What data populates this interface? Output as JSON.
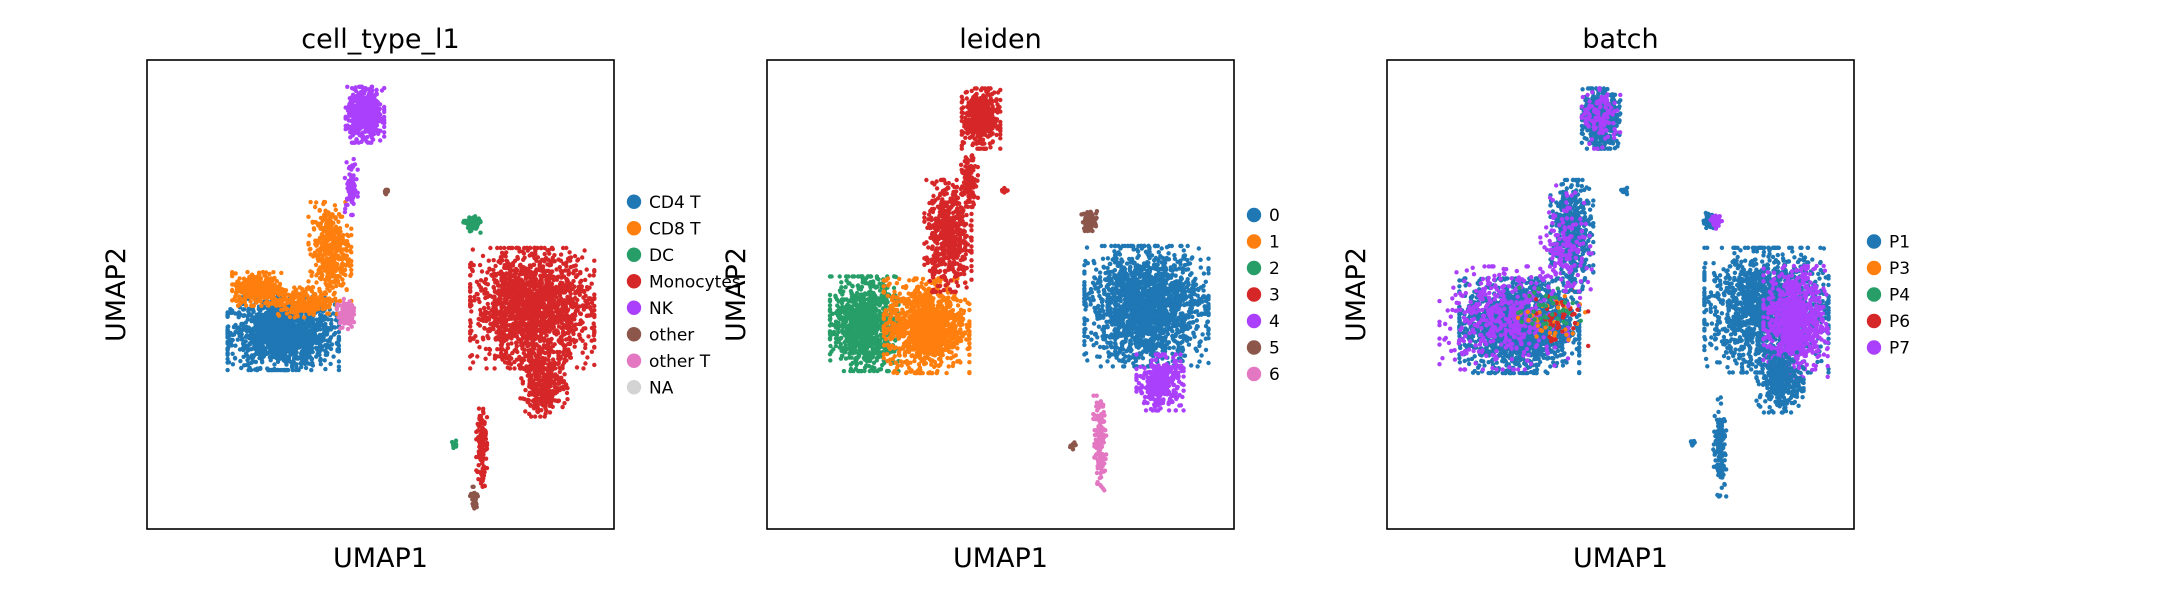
{
  "chart_data": [
    {
      "type": "scatter",
      "title": "cell_type_l1",
      "xlabel": "UMAP1",
      "ylabel": "UMAP2",
      "grid": false,
      "legend_placement": "right",
      "xlim": [
        -8,
        16
      ],
      "ylim": [
        -8,
        16
      ],
      "series": [
        {
          "name": "CD4 T",
          "color": "#1f77b4"
        },
        {
          "name": "CD8 T",
          "color": "#ff7f0e"
        },
        {
          "name": "DC",
          "color": "#279e68"
        },
        {
          "name": "Monocytes",
          "color": "#d62728"
        },
        {
          "name": "NK",
          "color": "#aa40fc"
        },
        {
          "name": "other",
          "color": "#8c564b"
        },
        {
          "name": "other T",
          "color": "#e377c2"
        },
        {
          "name": "NA",
          "color": "#d3d3d3"
        }
      ],
      "clusters": [
        {
          "series": "CD4 T",
          "cx": -1.0,
          "cy": 2.0,
          "rx": 2.6,
          "ry": 1.7,
          "n": 1500
        },
        {
          "series": "CD8 T",
          "cx": -2.3,
          "cy": 4.3,
          "rx": 1.2,
          "ry": 0.8,
          "n": 350
        },
        {
          "series": "CD8 T",
          "cx": 1.4,
          "cy": 6.2,
          "rx": 1.0,
          "ry": 2.3,
          "n": 400
        },
        {
          "series": "CD8 T",
          "cx": 0.0,
          "cy": 3.6,
          "rx": 1.6,
          "ry": 0.7,
          "n": 250
        },
        {
          "series": "other T",
          "cx": 2.2,
          "cy": 3.0,
          "rx": 0.4,
          "ry": 0.7,
          "n": 90
        },
        {
          "series": "NK",
          "cx": 3.2,
          "cy": 13.2,
          "rx": 0.9,
          "ry": 1.3,
          "n": 500
        },
        {
          "series": "NK",
          "cx": 2.5,
          "cy": 9.5,
          "rx": 0.3,
          "ry": 1.3,
          "n": 80
        },
        {
          "series": "other",
          "cx": 4.3,
          "cy": 9.3,
          "rx": 0.15,
          "ry": 0.15,
          "n": 12
        },
        {
          "series": "DC",
          "cx": 8.7,
          "cy": 7.6,
          "rx": 0.4,
          "ry": 0.4,
          "n": 70
        },
        {
          "series": "DC",
          "cx": 7.8,
          "cy": -3.7,
          "rx": 0.15,
          "ry": 0.2,
          "n": 12
        },
        {
          "series": "Monocytes",
          "cx": 11.8,
          "cy": 3.3,
          "rx": 2.9,
          "ry": 2.8,
          "n": 1800
        },
        {
          "series": "Monocytes",
          "cx": 12.4,
          "cy": -0.6,
          "rx": 1.1,
          "ry": 1.5,
          "n": 320
        },
        {
          "series": "Monocytes",
          "cx": 9.2,
          "cy": -3.6,
          "rx": 0.25,
          "ry": 2.2,
          "n": 120
        },
        {
          "series": "other",
          "cx": 8.8,
          "cy": -6.5,
          "rx": 0.2,
          "ry": 0.6,
          "n": 40
        }
      ]
    },
    {
      "type": "scatter",
      "title": "leiden",
      "xlabel": "UMAP1",
      "ylabel": "UMAP2",
      "grid": false,
      "legend_placement": "right",
      "xlim": [
        -8,
        16
      ],
      "ylim": [
        -8,
        16
      ],
      "series": [
        {
          "name": "0",
          "color": "#1f77b4"
        },
        {
          "name": "1",
          "color": "#ff7f0e"
        },
        {
          "name": "2",
          "color": "#279e68"
        },
        {
          "name": "3",
          "color": "#d62728"
        },
        {
          "name": "4",
          "color": "#aa40fc"
        },
        {
          "name": "5",
          "color": "#8c564b"
        },
        {
          "name": "6",
          "color": "#e377c2"
        }
      ],
      "clusters": [
        {
          "series": "2",
          "cx": -3.0,
          "cy": 2.5,
          "rx": 1.6,
          "ry": 2.2,
          "n": 1000
        },
        {
          "series": "1",
          "cx": 0.2,
          "cy": 2.4,
          "rx": 2.0,
          "ry": 2.2,
          "n": 1200
        },
        {
          "series": "3",
          "cx": 1.3,
          "cy": 7.0,
          "rx": 1.1,
          "ry": 2.6,
          "n": 550
        },
        {
          "series": "3",
          "cx": 3.0,
          "cy": 13.0,
          "rx": 0.9,
          "ry": 1.4,
          "n": 500
        },
        {
          "series": "3",
          "cx": 2.4,
          "cy": 9.8,
          "rx": 0.4,
          "ry": 1.2,
          "n": 120
        },
        {
          "series": "3",
          "cx": 4.2,
          "cy": 9.3,
          "rx": 0.15,
          "ry": 0.15,
          "n": 12
        },
        {
          "series": "5",
          "cx": 8.6,
          "cy": 7.8,
          "rx": 0.4,
          "ry": 0.5,
          "n": 70
        },
        {
          "series": "0",
          "cx": 11.5,
          "cy": 3.4,
          "rx": 2.9,
          "ry": 2.8,
          "n": 1900
        },
        {
          "series": "4",
          "cx": 12.2,
          "cy": -0.5,
          "rx": 1.1,
          "ry": 1.3,
          "n": 350
        },
        {
          "series": "6",
          "cx": 9.1,
          "cy": -3.6,
          "rx": 0.3,
          "ry": 2.2,
          "n": 140
        },
        {
          "series": "5",
          "cx": 7.7,
          "cy": -3.7,
          "rx": 0.15,
          "ry": 0.2,
          "n": 12
        }
      ]
    },
    {
      "type": "scatter",
      "title": "batch",
      "xlabel": "UMAP1",
      "ylabel": "UMAP2",
      "grid": false,
      "legend_placement": "right",
      "xlim": [
        -8,
        16
      ],
      "ylim": [
        -8,
        16
      ],
      "series": [
        {
          "name": "P1",
          "color": "#1f77b4"
        },
        {
          "name": "P3",
          "color": "#ff7f0e"
        },
        {
          "name": "P4",
          "color": "#279e68"
        },
        {
          "name": "P6",
          "color": "#d62728"
        },
        {
          "name": "P7",
          "color": "#aa40fc"
        }
      ],
      "clusters": [
        {
          "series": "P1",
          "cx": -1.2,
          "cy": 2.4,
          "rx": 2.8,
          "ry": 2.2,
          "n": 1800
        },
        {
          "series": "P7",
          "cx": -2.0,
          "cy": 2.8,
          "rx": 3.0,
          "ry": 2.4,
          "n": 450
        },
        {
          "series": "P3",
          "cx": 0.5,
          "cy": 2.5,
          "rx": 1.6,
          "ry": 1.4,
          "n": 40
        },
        {
          "series": "P6",
          "cx": 0.8,
          "cy": 2.8,
          "rx": 1.4,
          "ry": 1.3,
          "n": 40
        },
        {
          "series": "P4",
          "cx": 0.2,
          "cy": 3.2,
          "rx": 1.6,
          "ry": 1.2,
          "n": 40
        },
        {
          "series": "P1",
          "cx": 1.5,
          "cy": 7.0,
          "rx": 1.0,
          "ry": 2.6,
          "n": 500
        },
        {
          "series": "P7",
          "cx": 1.2,
          "cy": 6.5,
          "rx": 1.2,
          "ry": 2.8,
          "n": 160
        },
        {
          "series": "P1",
          "cx": 3.0,
          "cy": 13.0,
          "rx": 0.9,
          "ry": 1.4,
          "n": 520
        },
        {
          "series": "P7",
          "cx": 3.0,
          "cy": 13.0,
          "rx": 0.9,
          "ry": 1.4,
          "n": 120
        },
        {
          "series": "P1",
          "cx": 4.2,
          "cy": 9.3,
          "rx": 0.15,
          "ry": 0.15,
          "n": 12
        },
        {
          "series": "P1",
          "cx": 8.6,
          "cy": 7.8,
          "rx": 0.4,
          "ry": 0.4,
          "n": 50
        },
        {
          "series": "P7",
          "cx": 8.9,
          "cy": 7.7,
          "rx": 0.3,
          "ry": 0.3,
          "n": 30
        },
        {
          "series": "P1",
          "cx": 11.5,
          "cy": 3.2,
          "rx": 2.9,
          "ry": 2.9,
          "n": 1600
        },
        {
          "series": "P7",
          "cx": 13.0,
          "cy": 2.6,
          "rx": 1.5,
          "ry": 2.6,
          "n": 800
        },
        {
          "series": "P1",
          "cx": 12.2,
          "cy": -0.5,
          "rx": 1.1,
          "ry": 1.4,
          "n": 300
        },
        {
          "series": "P1",
          "cx": 9.1,
          "cy": -3.8,
          "rx": 0.3,
          "ry": 2.3,
          "n": 140
        },
        {
          "series": "P1",
          "cx": 7.7,
          "cy": -3.7,
          "rx": 0.15,
          "ry": 0.2,
          "n": 12
        }
      ]
    }
  ]
}
